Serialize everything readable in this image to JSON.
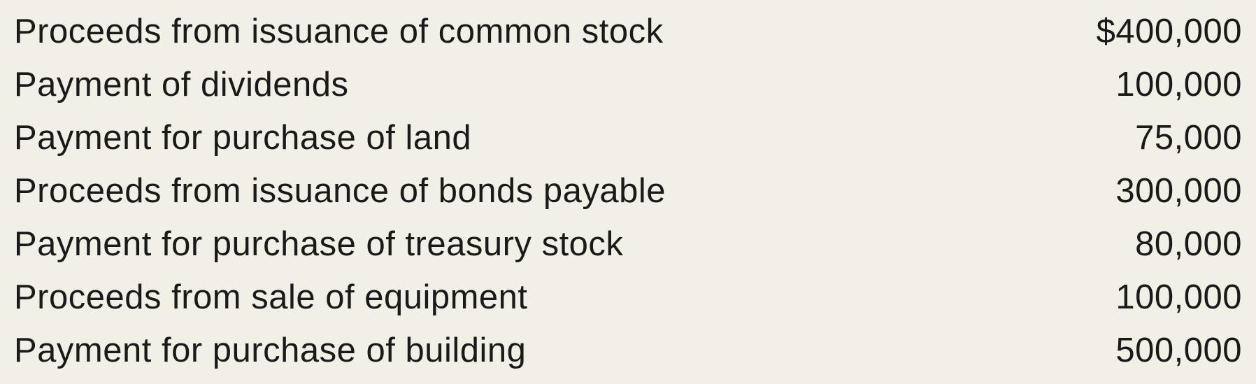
{
  "type": "table",
  "background_color": "#f2efe6",
  "text_color": "#1a1a1a",
  "font_family": "Futura, Century Gothic, sans-serif",
  "font_size_pt": 37,
  "font_weight": 300,
  "columns": [
    {
      "name": "description",
      "align": "left"
    },
    {
      "name": "amount",
      "align": "right"
    }
  ],
  "rows": [
    {
      "label": "Proceeds from issuance of common stock",
      "amount": "$400,000"
    },
    {
      "label": "Payment of dividends",
      "amount": "100,000"
    },
    {
      "label": "Payment for purchase of land",
      "amount": "75,000"
    },
    {
      "label": "Proceeds from issuance of bonds payable",
      "amount": "300,000"
    },
    {
      "label": "Payment for purchase of treasury stock",
      "amount": "80,000"
    },
    {
      "label": "Proceeds from sale of equipment",
      "amount": "100,000"
    },
    {
      "label": "Payment for purchase of building",
      "amount": "500,000"
    }
  ]
}
